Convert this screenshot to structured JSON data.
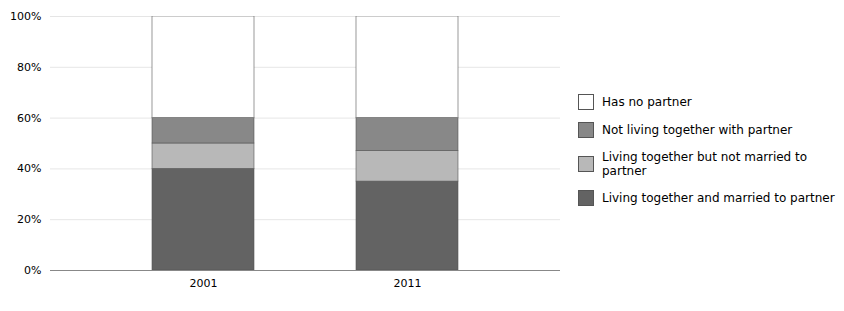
{
  "chart_data": {
    "type": "bar",
    "stacked": true,
    "grid": true,
    "legend": "right",
    "categories": [
      "2001",
      "2011"
    ],
    "series": [
      {
        "name": "Living together and married to partner",
        "color": "#636363",
        "values": [
          0.4,
          0.35
        ]
      },
      {
        "name": "Living together but not married to partner",
        "color": "#b8b8b8",
        "values": [
          0.1,
          0.12
        ]
      },
      {
        "name": "Not living together with partner",
        "color": "#888888",
        "values": [
          0.1,
          0.13
        ]
      },
      {
        "name": "Has no partner",
        "color": "#ffffff",
        "values": [
          0.4,
          0.4
        ]
      }
    ],
    "ylim": [
      0,
      1.0
    ],
    "yticks": [
      {
        "value": 0,
        "label": "0%"
      },
      {
        "value": 0.2,
        "label": "20%"
      },
      {
        "value": 0.4,
        "label": "40%"
      },
      {
        "value": 0.6,
        "label": "60%"
      },
      {
        "value": 0.8,
        "label": "80%"
      },
      {
        "value": 1.0,
        "label": "100%"
      }
    ]
  }
}
